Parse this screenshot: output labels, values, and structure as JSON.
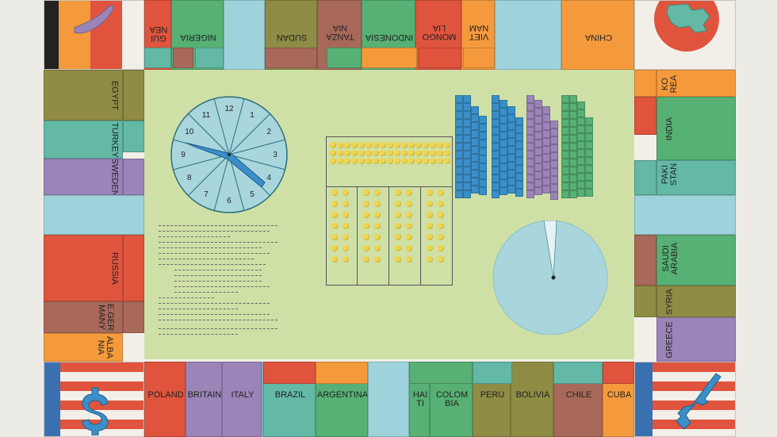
{
  "top_row": [
    "GUI NEA",
    "NIGERIA",
    "SUDAN",
    "TANZA NIA",
    "INDONESIA",
    "MONGO LIA",
    "VIET NAM",
    "CHINA"
  ],
  "left_col": [
    "EGYPT",
    "TURKEY",
    "SWEDEN",
    "RUSSIA",
    "E.GER MANY",
    "ALBA NIA"
  ],
  "right_col": [
    "KO REA",
    "INDIA",
    "PAKI STAN",
    "SAUDI ARABIA",
    "SYRIA",
    "GREECE"
  ],
  "bottom_row": [
    "POLAND",
    "BRITAIN",
    "ITALY",
    "BRAZIL",
    "ARGENTINA",
    "HAI TI",
    "COLOM BIA",
    "PERU",
    "BOLIVIA",
    "CHILE",
    "CUBA"
  ],
  "spinner_numbers": [
    "12",
    "1",
    "2",
    "3",
    "4",
    "5",
    "6",
    "7",
    "8",
    "9",
    "10",
    "11"
  ],
  "colors": {
    "board_green": "#cfe0a6",
    "orange": "#f59a3c",
    "red": "#e0543e",
    "teal": "#63b8a6",
    "green": "#57b074",
    "purple": "#9a84b8",
    "brown": "#a8695a",
    "olive": "#8e8c45",
    "lightblue": "#9fd3dc",
    "coin_yellow": "#f0d44a"
  },
  "icons": {
    "top_left": "purple-bird-token",
    "top_right": "teal-map-token-on-red-circle",
    "bottom_left": "blue-dollar-token-on-flag",
    "bottom_right": "blue-rifle-token-on-flag"
  }
}
